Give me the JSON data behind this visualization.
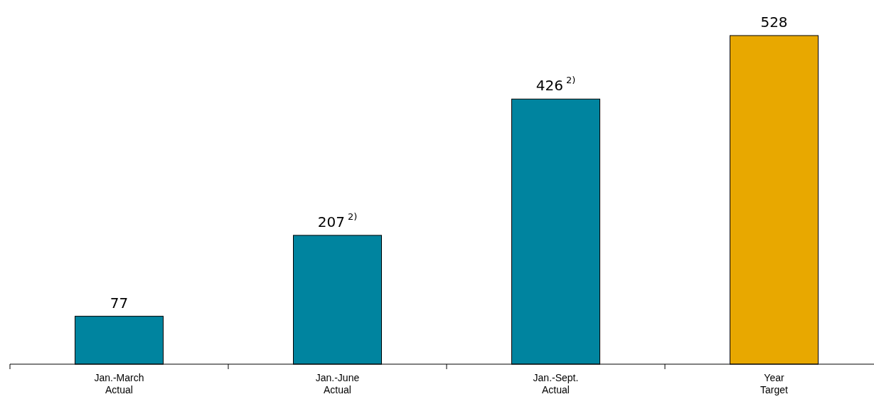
{
  "chart_data": {
    "type": "bar",
    "categories": [
      "Jan.-March\nActual",
      "Jan.-June\nActual",
      "Jan.-Sept.\nActual",
      "Year\nTarget"
    ],
    "values": [
      77,
      207,
      426,
      528
    ],
    "colors": [
      "#00849f",
      "#00849f",
      "#00849f",
      "#e8a800"
    ],
    "value_labels": [
      "77",
      "207$^{2)}$",
      "426$^{2)}$",
      "528"
    ]
  }
}
